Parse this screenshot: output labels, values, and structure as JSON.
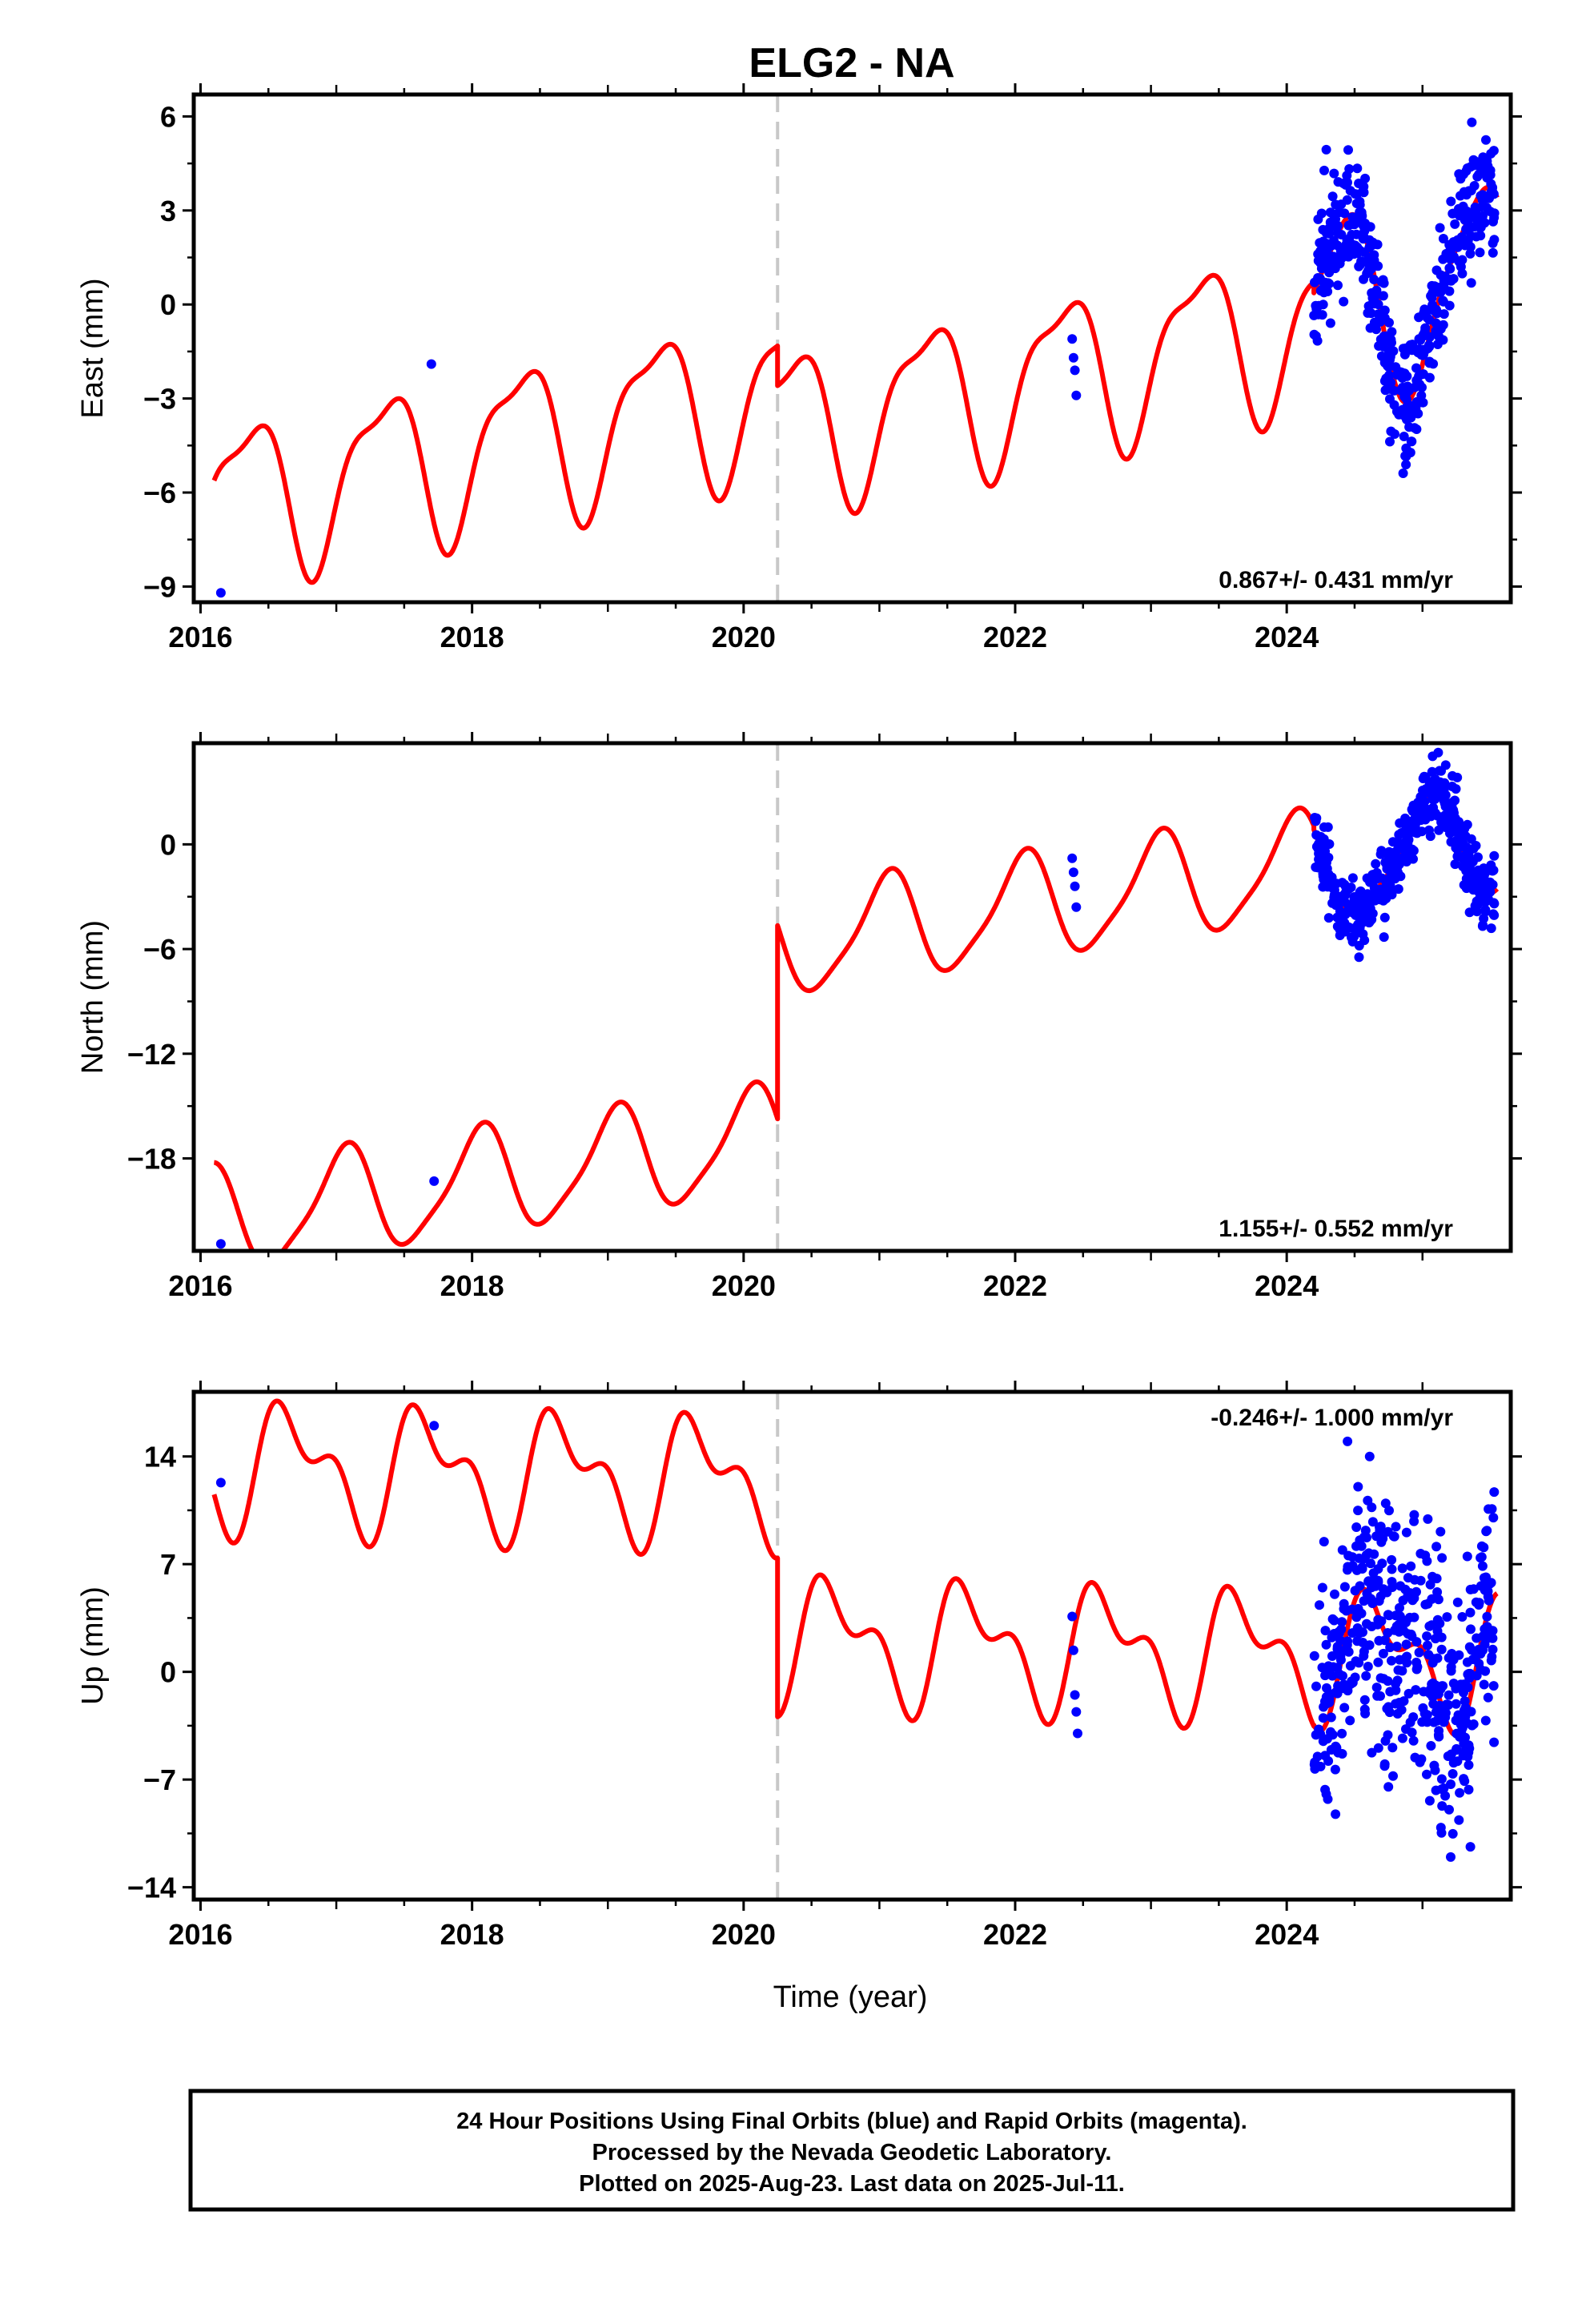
{
  "title": "ELG2 - NA",
  "xlabel": "Time (year)",
  "colors": {
    "model": "#ff0000",
    "points": "#0000ff",
    "offset_line": "#c8c8c8",
    "frame": "#000000"
  },
  "footer": {
    "line1": "24 Hour Positions Using Final Orbits (blue) and Rapid Orbits (magenta).",
    "line2": "Processed by the Nevada Geodetic Laboratory.",
    "line3": "Plotted on 2025-Aug-23. Last data on 2025-Jul-11."
  },
  "chart_data": [
    {
      "type": "scatter",
      "ylabel": "East (mm)",
      "rate_text": "0.867+/- 0.431 mm/yr",
      "rate_placement": "bottom-right",
      "xlim": [
        2015.95,
        2025.65
      ],
      "ylim": [
        -9.5,
        6.7
      ],
      "xticks": [
        2016,
        2018,
        2020,
        2022,
        2024
      ],
      "yticks": [
        -9,
        -6,
        -3,
        0,
        3,
        6
      ],
      "tick_labels": [
        "2016",
        "2018",
        "2020",
        "2022",
        "2024",
        "-9",
        "-6",
        "-3",
        "0",
        "3",
        "6"
      ],
      "offset_epoch": 2020.25,
      "model": {
        "trend": 0.867,
        "segments": [
          {
            "t0": 2016.1,
            "t1": 2020.25,
            "ref": 2018.2,
            "bias": -4.5,
            "a1": 2.0,
            "b1": -1.4,
            "a2": 0.5,
            "b2": 0.6
          },
          {
            "t0": 2020.25,
            "t1": 2024.2,
            "ref": 2022.2,
            "bias": -2.3,
            "a1": 2.0,
            "b1": -1.4,
            "a2": 0.5,
            "b2": 0.6
          },
          {
            "t0": 2024.2,
            "t1": 2025.55,
            "ref": 2024.9,
            "bias": 0.3,
            "a1": 1.5,
            "b1": -2.6,
            "a2": 0.5,
            "b2": 0.3
          }
        ]
      },
      "points": [
        [
          2016.15,
          -9.2
        ],
        [
          2017.7,
          -1.9
        ],
        [
          2022.42,
          -1.1
        ],
        [
          2022.43,
          -1.7
        ],
        [
          2022.44,
          -2.1
        ],
        [
          2022.45,
          -2.9
        ]
      ],
      "dense": {
        "t0": 2024.2,
        "t1": 2025.53,
        "n": 480,
        "scatter": 1.0,
        "seed": 11
      }
    },
    {
      "type": "scatter",
      "ylabel": "North (mm)",
      "rate_text": "1.155+/- 0.552 mm/yr",
      "rate_placement": "bottom-right",
      "xlim": [
        2015.95,
        2025.65
      ],
      "ylim": [
        -23.3,
        5.8
      ],
      "xticks": [
        2016,
        2018,
        2020,
        2022,
        2024
      ],
      "yticks": [
        -18,
        -12,
        -6,
        0
      ],
      "tick_labels": [
        "2016",
        "2018",
        "2020",
        "2022",
        "2024",
        "-18",
        "-12",
        "-6",
        "0"
      ],
      "offset_epoch": 2020.25,
      "model": {
        "trend": 1.155,
        "segments": [
          {
            "t0": 2016.1,
            "t1": 2020.25,
            "ref": 2018.2,
            "bias": -19.2,
            "a1": 1.0,
            "b1": 2.8,
            "a2": 0.6,
            "b2": -0.1
          },
          {
            "t0": 2020.25,
            "t1": 2024.2,
            "ref": 2022.2,
            "bias": -3.5,
            "a1": 1.0,
            "b1": 2.8,
            "a2": 0.6,
            "b2": -0.1
          },
          {
            "t0": 2024.2,
            "t1": 2025.55,
            "ref": 2024.9,
            "bias": -0.6,
            "a1": 1.0,
            "b1": 2.8,
            "a2": 0.6,
            "b2": -0.1
          }
        ]
      },
      "points": [
        [
          2016.15,
          -22.9
        ],
        [
          2017.72,
          -19.3
        ],
        [
          2022.42,
          -0.8
        ],
        [
          2022.43,
          -1.6
        ],
        [
          2022.44,
          -2.4
        ],
        [
          2022.45,
          -3.6
        ]
      ],
      "dense": {
        "t0": 2024.2,
        "t1": 2025.53,
        "n": 480,
        "scatter": 0.9,
        "seed": 23
      }
    },
    {
      "type": "scatter",
      "ylabel": "Up (mm)",
      "rate_text": "-0.246+/- 1.000 mm/yr",
      "rate_placement": "top-right",
      "xlim": [
        2015.95,
        2025.65
      ],
      "ylim": [
        -14.8,
        18.2
      ],
      "xticks": [
        2016,
        2018,
        2020,
        2022,
        2024
      ],
      "yticks": [
        -14,
        -7,
        0,
        7,
        14
      ],
      "tick_labels": [
        "2016",
        "2018",
        "2020",
        "2022",
        "2024",
        "-14",
        "-7",
        "0",
        "7",
        "14"
      ],
      "offset_epoch": 2020.25,
      "model": {
        "trend": -0.246,
        "segments": [
          {
            "t0": 2016.1,
            "t1": 2020.25,
            "ref": 2018.2,
            "bias": 12.9,
            "a1": -3.0,
            "b1": -1.5,
            "a2": 0.5,
            "b2": 2.0
          },
          {
            "t0": 2020.25,
            "t1": 2024.2,
            "ref": 2022.2,
            "bias": 1.6,
            "a1": -3.0,
            "b1": -1.5,
            "a2": 0.5,
            "b2": 2.0
          },
          {
            "t0": 2024.2,
            "t1": 2025.55,
            "ref": 2024.9,
            "bias": 1.0,
            "a1": -3.0,
            "b1": -1.5,
            "a2": 0.5,
            "b2": 2.0
          }
        ]
      },
      "points": [
        [
          2016.15,
          12.3
        ],
        [
          2017.72,
          16.0
        ],
        [
          2022.42,
          3.6
        ],
        [
          2022.43,
          1.4
        ],
        [
          2022.44,
          -1.5
        ],
        [
          2022.45,
          -2.6
        ],
        [
          2022.46,
          -4.0
        ]
      ],
      "dense": {
        "t0": 2024.2,
        "t1": 2025.53,
        "n": 480,
        "scatter": 4.0,
        "seed": 37
      }
    }
  ]
}
